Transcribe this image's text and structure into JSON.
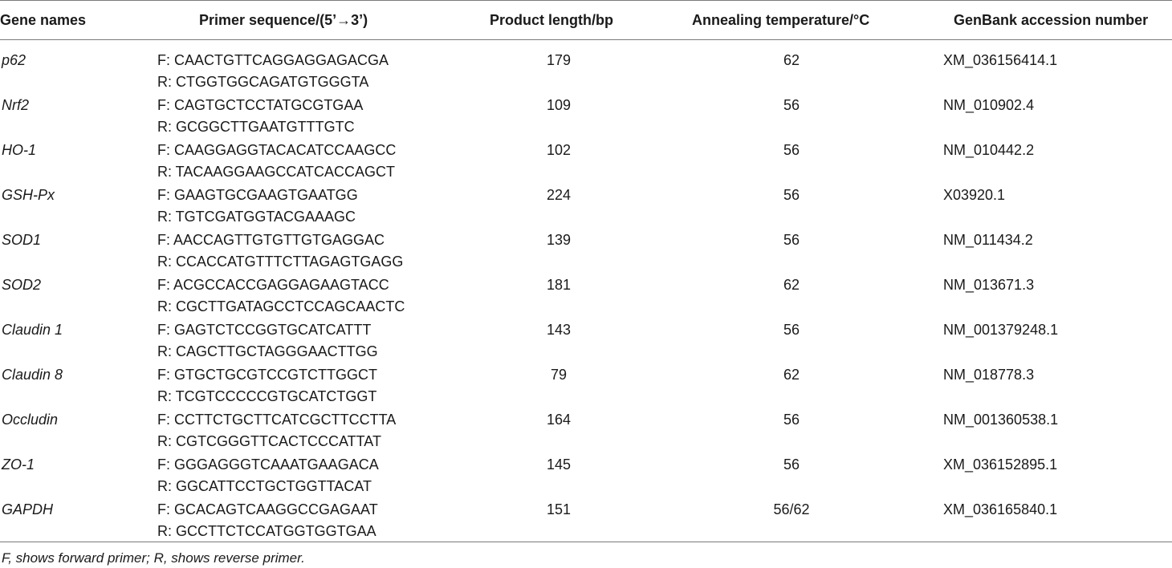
{
  "table": {
    "headers": {
      "gene": "Gene names",
      "primer": "Primer sequence/(5’→3’)",
      "length": "Product length/bp",
      "temp": "Annealing temperature/°C",
      "accession": "GenBank accession number"
    },
    "rows": [
      {
        "gene": "p62",
        "forward": "F: CAACTGTTCAGGAGGAGACGA",
        "reverse": "R: CTGGTGGCAGATGTGGGTA",
        "length": "179",
        "temp": "62",
        "accession": "XM_036156414.1"
      },
      {
        "gene": "Nrf2",
        "forward": "F: CAGTGCTCCTATGCGTGAA",
        "reverse": "R: GCGGCTTGAATGTTTGTC",
        "length": "109",
        "temp": "56",
        "accession": "NM_010902.4"
      },
      {
        "gene": "HO-1",
        "forward": "F: CAAGGAGGTACACATCCAAGCC",
        "reverse": "R: TACAAGGAAGCCATCACCAGCT",
        "length": "102",
        "temp": "56",
        "accession": "NM_010442.2"
      },
      {
        "gene": "GSH-Px",
        "forward": "F: GAAGTGCGAAGTGAATGG",
        "reverse": "R: TGTCGATGGTACGAAAGC",
        "length": "224",
        "temp": "56",
        "accession": "X03920.1"
      },
      {
        "gene": "SOD1",
        "forward": "F: AACCAGTTGTGTTGTGAGGAC",
        "reverse": "R: CCACCATGTTTCTTAGAGTGAGG",
        "length": "139",
        "temp": "56",
        "accession": "NM_011434.2"
      },
      {
        "gene": "SOD2",
        "forward": "F: ACGCCACCGAGGAGAAGTACC",
        "reverse": "R: CGCTTGATAGCCTCCAGCAACTC",
        "length": "181",
        "temp": "62",
        "accession": "NM_013671.3"
      },
      {
        "gene": "Claudin 1",
        "forward": "F: GAGTCTCCGGTGCATCATTT",
        "reverse": "R: CAGCTTGCTAGGGAACTTGG",
        "length": "143",
        "temp": "56",
        "accession": "NM_001379248.1"
      },
      {
        "gene": "Claudin 8",
        "forward": "F: GTGCTGCGTCCGTCTTGGCT",
        "reverse": "R: TCGTCCCCCGTGCATCTGGT",
        "length": "79",
        "temp": "62",
        "accession": "NM_018778.3"
      },
      {
        "gene": "Occludin",
        "forward": "F: CCTTCTGCTTCATCGCTTCCTTA",
        "reverse": "R: CGTCGGGTTCACTCCCATTAT",
        "length": "164",
        "temp": "56",
        "accession": "NM_001360538.1"
      },
      {
        "gene": "ZO-1",
        "forward": "F: GGGAGGGTCAAATGAAGACA",
        "reverse": "R: GGCATTCCTGCTGGTTACAT",
        "length": "145",
        "temp": "56",
        "accession": "XM_036152895.1"
      },
      {
        "gene": "GAPDH",
        "forward": "F: GCACAGTCAAGGCCGAGAAT",
        "reverse": "R: GCCTTCTCCATGGTGGTGAA",
        "length": "151",
        "temp": "56/62",
        "accession": "XM_036165840.1"
      }
    ]
  },
  "footnote": "F, shows forward primer; R, shows reverse primer."
}
